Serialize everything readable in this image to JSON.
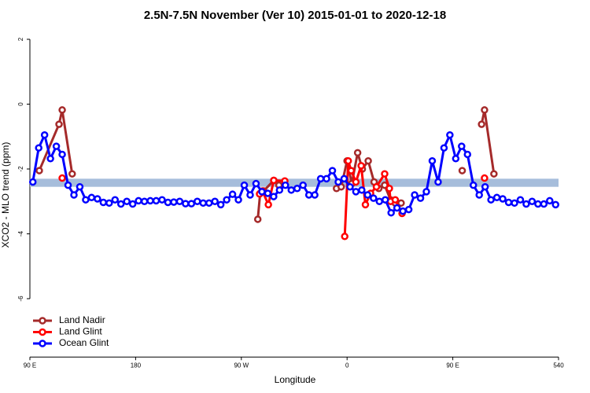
{
  "chart_data": {
    "type": "line",
    "title": "2.5N-7.5N November (Ver 10)   2015-01-01 to 2020-12-18",
    "x_label": "Longitude",
    "y_label": "XCO2 - MLO trend (ppm)",
    "xlim": [
      90,
      540
    ],
    "ylim": [
      -7.8,
      2.25
    ],
    "xticks": [
      {
        "value": 90,
        "label": "90 E"
      },
      180,
      {
        "value": 270,
        "label": "90 W"
      },
      {
        "value": 360,
        "label": "0"
      },
      {
        "value": 450,
        "label": "90 E"
      },
      540
    ],
    "yticks": [
      2,
      0,
      -2,
      -4,
      -6
    ],
    "band": [
      -2.55,
      -2.3
    ],
    "band_color": "#a6bddb",
    "legend": "bottom-left",
    "series": [
      {
        "name": "Land Nadir",
        "color": "#a52a2a",
        "x": [
          98,
          114.8,
          117.5,
          126,
          130,
          284,
          286,
          289,
          297.6,
          302,
          330,
          351,
          355,
          360,
          364,
          369,
          373,
          378,
          383,
          387,
          392,
          397,
          401,
          406,
          440,
          458,
          470,
          474.5,
          477,
          485
        ],
        "values": [
          -2.05,
          -0.62,
          -0.18,
          -2.15,
          null,
          -3.55,
          -2.75,
          -2.68,
          -2.35,
          -2.5,
          null,
          -2.6,
          -2.55,
          -1.75,
          -2.45,
          -1.5,
          -2.0,
          -1.75,
          -2.4,
          -2.6,
          -2.5,
          -2.95,
          -3.05,
          -3.05,
          null,
          -2.05,
          null,
          -0.62,
          -0.18,
          -2.15
        ]
      },
      {
        "name": "Land Glint",
        "color": "#ff0000",
        "x": [
          117.5,
          200,
          285.5,
          288,
          293,
          297.6,
          307,
          330,
          358,
          361,
          363.5,
          367.5,
          372,
          375.6,
          380,
          385,
          392,
          396,
          397,
          401,
          406.8,
          440,
          477
        ],
        "values": [
          -2.28,
          null,
          -2.77,
          -2.68,
          -3.1,
          -2.35,
          -2.37,
          null,
          -4.08,
          -1.75,
          -2.05,
          -2.4,
          -1.9,
          -3.1,
          -2.75,
          -2.55,
          -2.15,
          -2.6,
          -3.0,
          -2.95,
          -3.37,
          null,
          -2.28
        ]
      },
      {
        "name": "Ocean Glint",
        "color": "#0000ff",
        "x": [
          92.5,
          97.5,
          102.5,
          107.5,
          112.5,
          117.5,
          122.5,
          127.5,
          132.5,
          137.5,
          142.5,
          147.5,
          152.5,
          157.5,
          162.5,
          167.5,
          172.5,
          177.5,
          182.5,
          187.5,
          192.5,
          197.5,
          202.5,
          207.5,
          212.5,
          217.5,
          222.5,
          227.5,
          232.5,
          237.5,
          242.5,
          247.5,
          252.5,
          257.5,
          262.5,
          267.5,
          272.5,
          277.5,
          282.5,
          287.5,
          292.5,
          297.5,
          302.5,
          307.5,
          312.5,
          317.5,
          322.5,
          327.5,
          332.5,
          337.5,
          342.5,
          347.5,
          352.5,
          357.5,
          362.5,
          367.5,
          372.5,
          377.5,
          382.5,
          387.5,
          392.5,
          397.5,
          402.5,
          407.5,
          412.5,
          417.5,
          422.5,
          427.5,
          432.5,
          437.5,
          442.5,
          447.5,
          452.5,
          457.5,
          462.5,
          467.5,
          472.5,
          477.5,
          482.5,
          487.5,
          492.5,
          497.5,
          502.5,
          507.5,
          512.5,
          517.5,
          522.5,
          527.5,
          532.5,
          537.5
        ],
        "values": [
          -2.4,
          -1.35,
          -0.95,
          -1.68,
          -1.3,
          -1.55,
          -2.5,
          -2.8,
          -2.55,
          -2.95,
          -2.88,
          -2.92,
          -3.03,
          -3.05,
          -2.95,
          -3.08,
          -3.0,
          -3.08,
          -2.98,
          -3.0,
          -2.98,
          -2.98,
          -2.95,
          -3.03,
          -3.02,
          -3.0,
          -3.07,
          -3.07,
          -3.0,
          -3.05,
          -3.05,
          -3.0,
          -3.1,
          -2.95,
          -2.78,
          -2.95,
          -2.5,
          -2.8,
          -2.45,
          -2.7,
          -2.75,
          -2.85,
          -2.65,
          -2.5,
          -2.65,
          -2.6,
          -2.5,
          -2.8,
          -2.8,
          -2.3,
          -2.3,
          -2.05,
          -2.4,
          -2.3,
          -2.55,
          -2.7,
          -2.65,
          -2.8,
          -2.9,
          -3.0,
          -2.95,
          -3.35,
          -3.2,
          -3.3,
          -3.25,
          -2.8,
          -2.9,
          -2.7,
          -1.75,
          -2.4,
          -1.35,
          -0.95,
          -1.68,
          -1.3,
          -1.55,
          -2.5,
          -2.8,
          -2.55,
          -2.95,
          -2.88,
          -2.92,
          -3.03,
          -3.05,
          -2.95,
          -3.08,
          -3.0,
          -3.08,
          -3.08,
          -2.98,
          -3.1
        ]
      }
    ]
  }
}
